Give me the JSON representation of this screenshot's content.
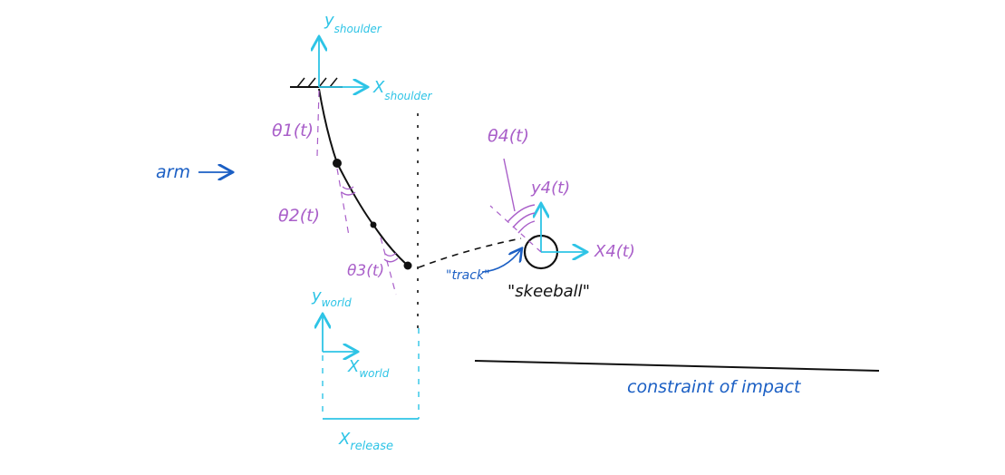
{
  "labels": {
    "y_shoulder": {
      "main": "y",
      "sub": "shoulder"
    },
    "x_shoulder": {
      "main": "X",
      "sub": "shoulder"
    },
    "theta1": "θ1(t)",
    "theta2": "θ2(t)",
    "theta3": "θ3(t)",
    "theta4": "θ4(t)",
    "arm": "arm",
    "y4": "y4(t)",
    "x4": "X4(t)",
    "track": "\"track\"",
    "skeeball": "\"skeeball\"",
    "y_world": {
      "main": "y",
      "sub": "world"
    },
    "x_world": {
      "main": "X",
      "sub": "world"
    },
    "x_release": {
      "main": "X",
      "sub": "release"
    },
    "constraint": "constraint of impact"
  },
  "colors": {
    "axis": "#2ec4e6",
    "angle": "#a95fc9",
    "annotation": "#1b5fc4",
    "ink": "#111111"
  }
}
